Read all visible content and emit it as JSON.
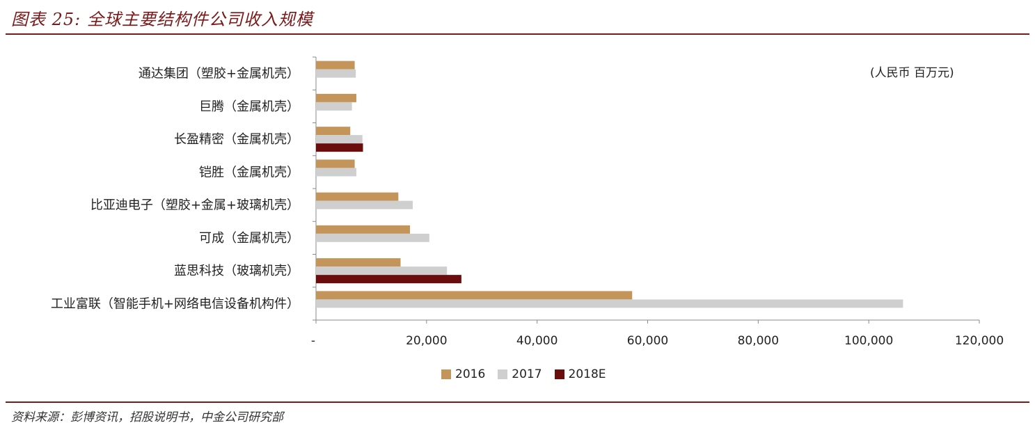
{
  "figure": {
    "title": "图表 25: 全球主要结构件公司收入规模",
    "source": "资料来源：彭博资讯，招股说明书，中金公司研究部"
  },
  "chart_data": {
    "type": "bar",
    "orientation": "horizontal",
    "unit_label": "(人民币 百万元)",
    "categories": [
      "通达集团（塑胶+金属机壳）",
      "巨腾（金属机壳）",
      "长盈精密（金属机壳）",
      "铠胜（金属机壳）",
      "比亚迪电子（塑胶+金属+玻璃机壳）",
      "可成（金属机壳）",
      "蓝思科技（玻璃机壳）",
      "工业富联（智能手机+网络电信设备机构件）"
    ],
    "series": [
      {
        "name": "2016",
        "color": "#c4955a",
        "values": [
          7000,
          7300,
          6200,
          7000,
          14900,
          17000,
          15300,
          57200
        ]
      },
      {
        "name": "2017",
        "color": "#cfcfcf",
        "values": [
          7200,
          6500,
          8400,
          7300,
          17500,
          20500,
          23700,
          106200
        ]
      },
      {
        "name": "2018E",
        "color": "#6b0d0d",
        "values": [
          null,
          null,
          8500,
          null,
          null,
          null,
          26300,
          null
        ]
      }
    ],
    "xlim": [
      0,
      120000
    ],
    "xticks": [
      0,
      20000,
      40000,
      60000,
      80000,
      100000,
      120000
    ],
    "xtick_labels": [
      "-",
      "20,000",
      "40,000",
      "60,000",
      "80,000",
      "100,000",
      "120,000"
    ],
    "legend_position": "bottom",
    "grid": false
  }
}
